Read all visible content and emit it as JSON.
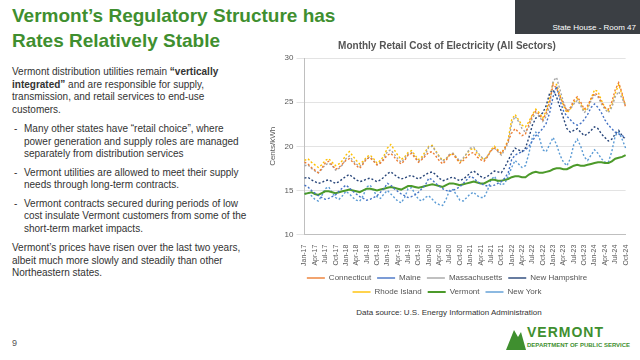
{
  "title": [
    "Vermont’s Regulatory Structure has",
    "Rates Relatively Stable"
  ],
  "video_caption": "State House - Room 47",
  "body": {
    "intro_before": "Vermont distribution utilities remain ",
    "intro_bold": "“vertically integrated”",
    "intro_after": " and are responsible for supply, transmission, and retail services to end-use customers.",
    "bullets": [
      "Many other states have “retail choice”, where power generation and supply roles are managed separately from distribution services",
      "Vermont utilities are allowed to meet their supply needs through long-term contracts.",
      "Vermont contracts secured during periods of low cost insulate Vermont customers from some of the short-term market impacts."
    ],
    "closing": "Vermont’s prices have risen over the last two years, albeit much more slowly and steadily than other Northeastern states."
  },
  "chart_data": {
    "type": "line",
    "title": "Monthly Retail Cost of Electricity (All Sectors)",
    "y_label": "Cents/kWh",
    "categories": [
      "Jan-17",
      null,
      null,
      "Apr-17",
      null,
      null,
      "Jul-17",
      null,
      null,
      "Oct-17",
      null,
      null,
      "Jan-18",
      null,
      null,
      "Apr-18",
      null,
      null,
      "Jul-18",
      null,
      null,
      "Oct-18",
      null,
      null,
      "Jan-19",
      null,
      null,
      "Apr-19",
      null,
      null,
      "Jul-19",
      null,
      null,
      "Oct-19",
      null,
      null,
      "Jan-20",
      null,
      null,
      "Apr-20",
      null,
      null,
      "Jul-20",
      null,
      null,
      "Oct-20",
      null,
      null,
      "Jan-21",
      null,
      null,
      "Apr-21",
      null,
      null,
      "Jul-21",
      null,
      null,
      "Oct-21",
      null,
      null,
      "Jan-22",
      null,
      null,
      "Apr-22",
      null,
      null,
      "Jul-22",
      null,
      null,
      "Oct-22",
      null,
      null,
      "Jan-23",
      null,
      null,
      "Apr-23",
      null,
      null,
      "Jul-23",
      null,
      null,
      "Oct-23",
      null,
      null,
      "Jan-24",
      null,
      null,
      "Apr-24",
      null,
      null,
      "Jul-24",
      null,
      null,
      "Oct-24"
    ],
    "series": [
      {
        "name": "Connecticut",
        "color": "#ED7D31",
        "line_style": "dotted",
        "values": [
          18.2,
          18.0,
          17.6,
          17.3,
          17.0,
          17.5,
          18.1,
          18.3,
          17.9,
          17.4,
          17.6,
          18.0,
          18.4,
          18.6,
          18.2,
          17.8,
          17.5,
          18.0,
          18.6,
          18.7,
          18.3,
          17.9,
          18.1,
          18.5,
          19.0,
          19.2,
          18.8,
          18.3,
          18.0,
          18.4,
          19.0,
          19.2,
          18.7,
          18.2,
          18.5,
          18.9,
          19.3,
          19.4,
          18.9,
          18.4,
          18.0,
          18.4,
          19.0,
          19.1,
          18.6,
          18.1,
          18.4,
          18.8,
          19.2,
          19.3,
          18.8,
          18.5,
          18.3,
          18.8,
          19.5,
          19.8,
          19.5,
          19.2,
          19.8,
          20.6,
          21.5,
          22.0,
          21.6,
          21.2,
          21.4,
          22.5,
          23.5,
          24.0,
          23.6,
          23.0,
          23.8,
          25.0,
          27.0,
          26.6,
          25.6,
          24.8,
          24.0,
          24.4,
          25.2,
          25.6,
          25.0,
          24.2,
          24.6,
          25.4,
          26.0,
          25.8,
          25.0,
          24.4,
          24.2,
          25.0,
          26.4,
          27.2,
          26.0,
          24.4
        ]
      },
      {
        "name": "Maine",
        "color": "#4472C4",
        "line_style": "dotted",
        "values": [
          15.6,
          15.4,
          15.0,
          14.7,
          14.4,
          14.2,
          14.0,
          14.1,
          14.3,
          14.5,
          14.9,
          15.3,
          15.6,
          15.3,
          14.9,
          14.6,
          14.3,
          14.1,
          13.9,
          14.0,
          14.2,
          14.4,
          14.8,
          15.2,
          15.8,
          15.6,
          15.2,
          14.9,
          14.6,
          14.4,
          14.2,
          14.3,
          14.5,
          14.8,
          15.2,
          15.6,
          16.4,
          16.2,
          15.8,
          15.5,
          15.2,
          15.0,
          14.9,
          15.0,
          15.2,
          15.4,
          15.8,
          16.2,
          16.6,
          16.4,
          16.0,
          15.8,
          15.6,
          15.5,
          15.5,
          15.6,
          15.8,
          16.0,
          16.4,
          17.0,
          18.5,
          19.0,
          19.2,
          19.4,
          19.6,
          20.0,
          20.6,
          21.2,
          21.6,
          22.0,
          22.6,
          23.8,
          25.6,
          26.8,
          25.2,
          24.0,
          23.4,
          23.0,
          22.6,
          22.4,
          22.6,
          23.0,
          23.6,
          24.4,
          24.8,
          24.4,
          23.8,
          23.0,
          22.4,
          22.0,
          21.6,
          21.4,
          21.2,
          21.0
        ]
      },
      {
        "name": "Massachusetts",
        "color": "#A5A5A5",
        "line_style": "dotted",
        "values": [
          17.8,
          17.9,
          17.5,
          17.2,
          17.0,
          17.4,
          17.9,
          18.1,
          17.8,
          17.3,
          17.5,
          17.9,
          18.6,
          18.9,
          18.4,
          18.0,
          17.7,
          18.1,
          18.6,
          18.8,
          18.4,
          17.9,
          18.2,
          18.6,
          19.4,
          19.6,
          19.1,
          18.6,
          18.2,
          18.6,
          19.1,
          19.3,
          18.8,
          18.3,
          18.6,
          19.1,
          19.9,
          20.0,
          19.4,
          18.8,
          18.3,
          18.6,
          19.1,
          19.2,
          18.8,
          18.3,
          18.7,
          19.2,
          19.8,
          19.9,
          19.4,
          18.9,
          18.5,
          18.9,
          19.5,
          19.8,
          19.4,
          19.0,
          19.6,
          20.4,
          22.6,
          23.4,
          22.8,
          22.0,
          21.6,
          22.2,
          23.2,
          23.8,
          23.4,
          22.8,
          23.4,
          24.6,
          27.4,
          27.8,
          26.4,
          25.0,
          24.0,
          24.2,
          24.8,
          25.2,
          24.6,
          23.8,
          24.2,
          25.2,
          25.8,
          25.6,
          24.8,
          24.2,
          23.8,
          24.4,
          25.6,
          26.2,
          25.4,
          24.6
        ]
      },
      {
        "name": "New Hampshire",
        "color": "#264478",
        "line_style": "dotted",
        "values": [
          16.4,
          16.5,
          16.2,
          16.0,
          15.8,
          15.9,
          16.1,
          16.2,
          16.0,
          15.8,
          16.0,
          16.3,
          16.6,
          16.8,
          16.5,
          16.2,
          16.0,
          16.1,
          16.3,
          16.4,
          16.2,
          16.0,
          16.2,
          16.5,
          16.9,
          17.1,
          16.8,
          16.5,
          16.3,
          16.4,
          16.6,
          16.7,
          16.5,
          16.3,
          16.5,
          16.8,
          17.0,
          17.1,
          16.8,
          16.4,
          16.1,
          16.2,
          16.4,
          16.5,
          16.3,
          16.1,
          16.3,
          16.6,
          17.0,
          17.2,
          16.9,
          16.6,
          16.4,
          16.6,
          16.9,
          17.2,
          17.1,
          17.0,
          17.6,
          18.4,
          19.2,
          19.8,
          19.6,
          19.4,
          19.8,
          21.0,
          22.4,
          23.2,
          23.4,
          23.8,
          24.6,
          26.0,
          26.4,
          25.6,
          24.4,
          23.2,
          22.0,
          21.6,
          21.8,
          22.0,
          21.6,
          21.2,
          21.4,
          21.8,
          22.2,
          22.0,
          21.4,
          21.0,
          20.6,
          20.8,
          21.4,
          21.8,
          21.2,
          20.8
        ]
      },
      {
        "name": "Rhode Island",
        "color": "#FFC000",
        "line_style": "dotted",
        "values": [
          18.4,
          18.6,
          18.2,
          17.9,
          17.6,
          17.9,
          18.4,
          18.6,
          18.2,
          17.8,
          18.0,
          18.4,
          19.0,
          19.4,
          18.9,
          18.4,
          18.0,
          18.3,
          18.8,
          19.0,
          18.6,
          18.1,
          18.4,
          18.9,
          19.8,
          20.2,
          19.6,
          19.0,
          18.5,
          18.8,
          19.3,
          19.5,
          19.0,
          18.5,
          18.8,
          19.4,
          20.0,
          20.1,
          19.5,
          18.9,
          18.4,
          18.6,
          19.0,
          19.2,
          18.7,
          18.2,
          18.6,
          19.2,
          19.6,
          19.8,
          19.2,
          18.8,
          18.5,
          18.9,
          19.6,
          20.0,
          19.6,
          19.2,
          19.8,
          20.8,
          23.0,
          23.6,
          23.0,
          22.4,
          22.2,
          22.8,
          23.6,
          24.2,
          23.8,
          23.2,
          24.0,
          25.6,
          27.2,
          27.0,
          25.8,
          24.6,
          23.8,
          24.2,
          25.0,
          25.4,
          24.8,
          24.0,
          24.4,
          25.4,
          26.4,
          26.2,
          25.2,
          24.4,
          24.0,
          24.6,
          26.0,
          27.0,
          25.8,
          24.6
        ]
      },
      {
        "name": "Vermont",
        "color": "#4C9A2A",
        "line_style": "solid",
        "values": [
          14.6,
          14.7,
          14.8,
          14.6,
          14.5,
          14.7,
          14.9,
          14.9,
          14.8,
          14.7,
          14.8,
          14.9,
          15.0,
          15.1,
          15.0,
          14.9,
          14.8,
          15.0,
          15.2,
          15.2,
          15.1,
          15.0,
          15.1,
          15.2,
          15.3,
          15.4,
          15.3,
          15.2,
          15.1,
          15.3,
          15.5,
          15.5,
          15.4,
          15.3,
          15.4,
          15.5,
          15.6,
          15.7,
          15.6,
          15.5,
          15.4,
          15.6,
          15.8,
          15.8,
          15.7,
          15.6,
          15.7,
          15.8,
          15.9,
          16.0,
          15.9,
          15.8,
          15.8,
          16.0,
          16.2,
          16.2,
          16.1,
          16.1,
          16.2,
          16.3,
          16.5,
          16.6,
          16.6,
          16.5,
          16.5,
          16.8,
          17.0,
          17.1,
          17.0,
          17.0,
          17.1,
          17.2,
          17.4,
          17.5,
          17.5,
          17.4,
          17.4,
          17.6,
          17.8,
          17.9,
          17.8,
          17.8,
          17.9,
          18.0,
          18.1,
          18.2,
          18.2,
          18.1,
          18.1,
          18.3,
          18.6,
          18.7,
          18.8,
          19.0
        ]
      },
      {
        "name": "New York",
        "color": "#5B9BD5",
        "line_style": "dotted",
        "values": [
          14.6,
          14.8,
          14.4,
          14.0,
          13.8,
          14.4,
          15.2,
          15.4,
          14.8,
          14.2,
          14.0,
          14.4,
          14.9,
          14.6,
          14.2,
          13.9,
          13.8,
          14.4,
          15.4,
          15.6,
          15.0,
          14.3,
          14.1,
          14.6,
          15.0,
          14.6,
          14.2,
          13.8,
          13.6,
          14.2,
          15.2,
          15.3,
          14.6,
          14.0,
          13.8,
          14.2,
          14.4,
          14.0,
          13.6,
          13.4,
          13.3,
          14.0,
          15.0,
          15.1,
          14.5,
          13.9,
          13.8,
          14.2,
          14.6,
          14.8,
          14.4,
          14.2,
          14.2,
          15.0,
          16.2,
          16.6,
          16.0,
          15.6,
          15.8,
          16.6,
          17.6,
          18.4,
          18.0,
          17.6,
          17.8,
          19.2,
          21.0,
          21.6,
          21.0,
          19.6,
          19.4,
          20.2,
          21.0,
          20.2,
          19.0,
          18.2,
          17.8,
          18.6,
          20.2,
          20.8,
          20.0,
          18.8,
          18.4,
          19.0,
          19.6,
          19.2,
          18.6,
          18.2,
          18.2,
          19.4,
          21.2,
          21.6,
          20.8,
          19.8
        ]
      }
    ],
    "ylim": [
      10,
      30
    ],
    "yticks": [
      10,
      15,
      20,
      25,
      30
    ],
    "grid": true,
    "legend": "bottom"
  },
  "source": "Data source: U.S. Energy Information Administration",
  "slide_number": 9,
  "logo": {
    "name": "VERMONT",
    "subtitle": "DEPARTMENT OF PUBLIC SERVICE"
  }
}
